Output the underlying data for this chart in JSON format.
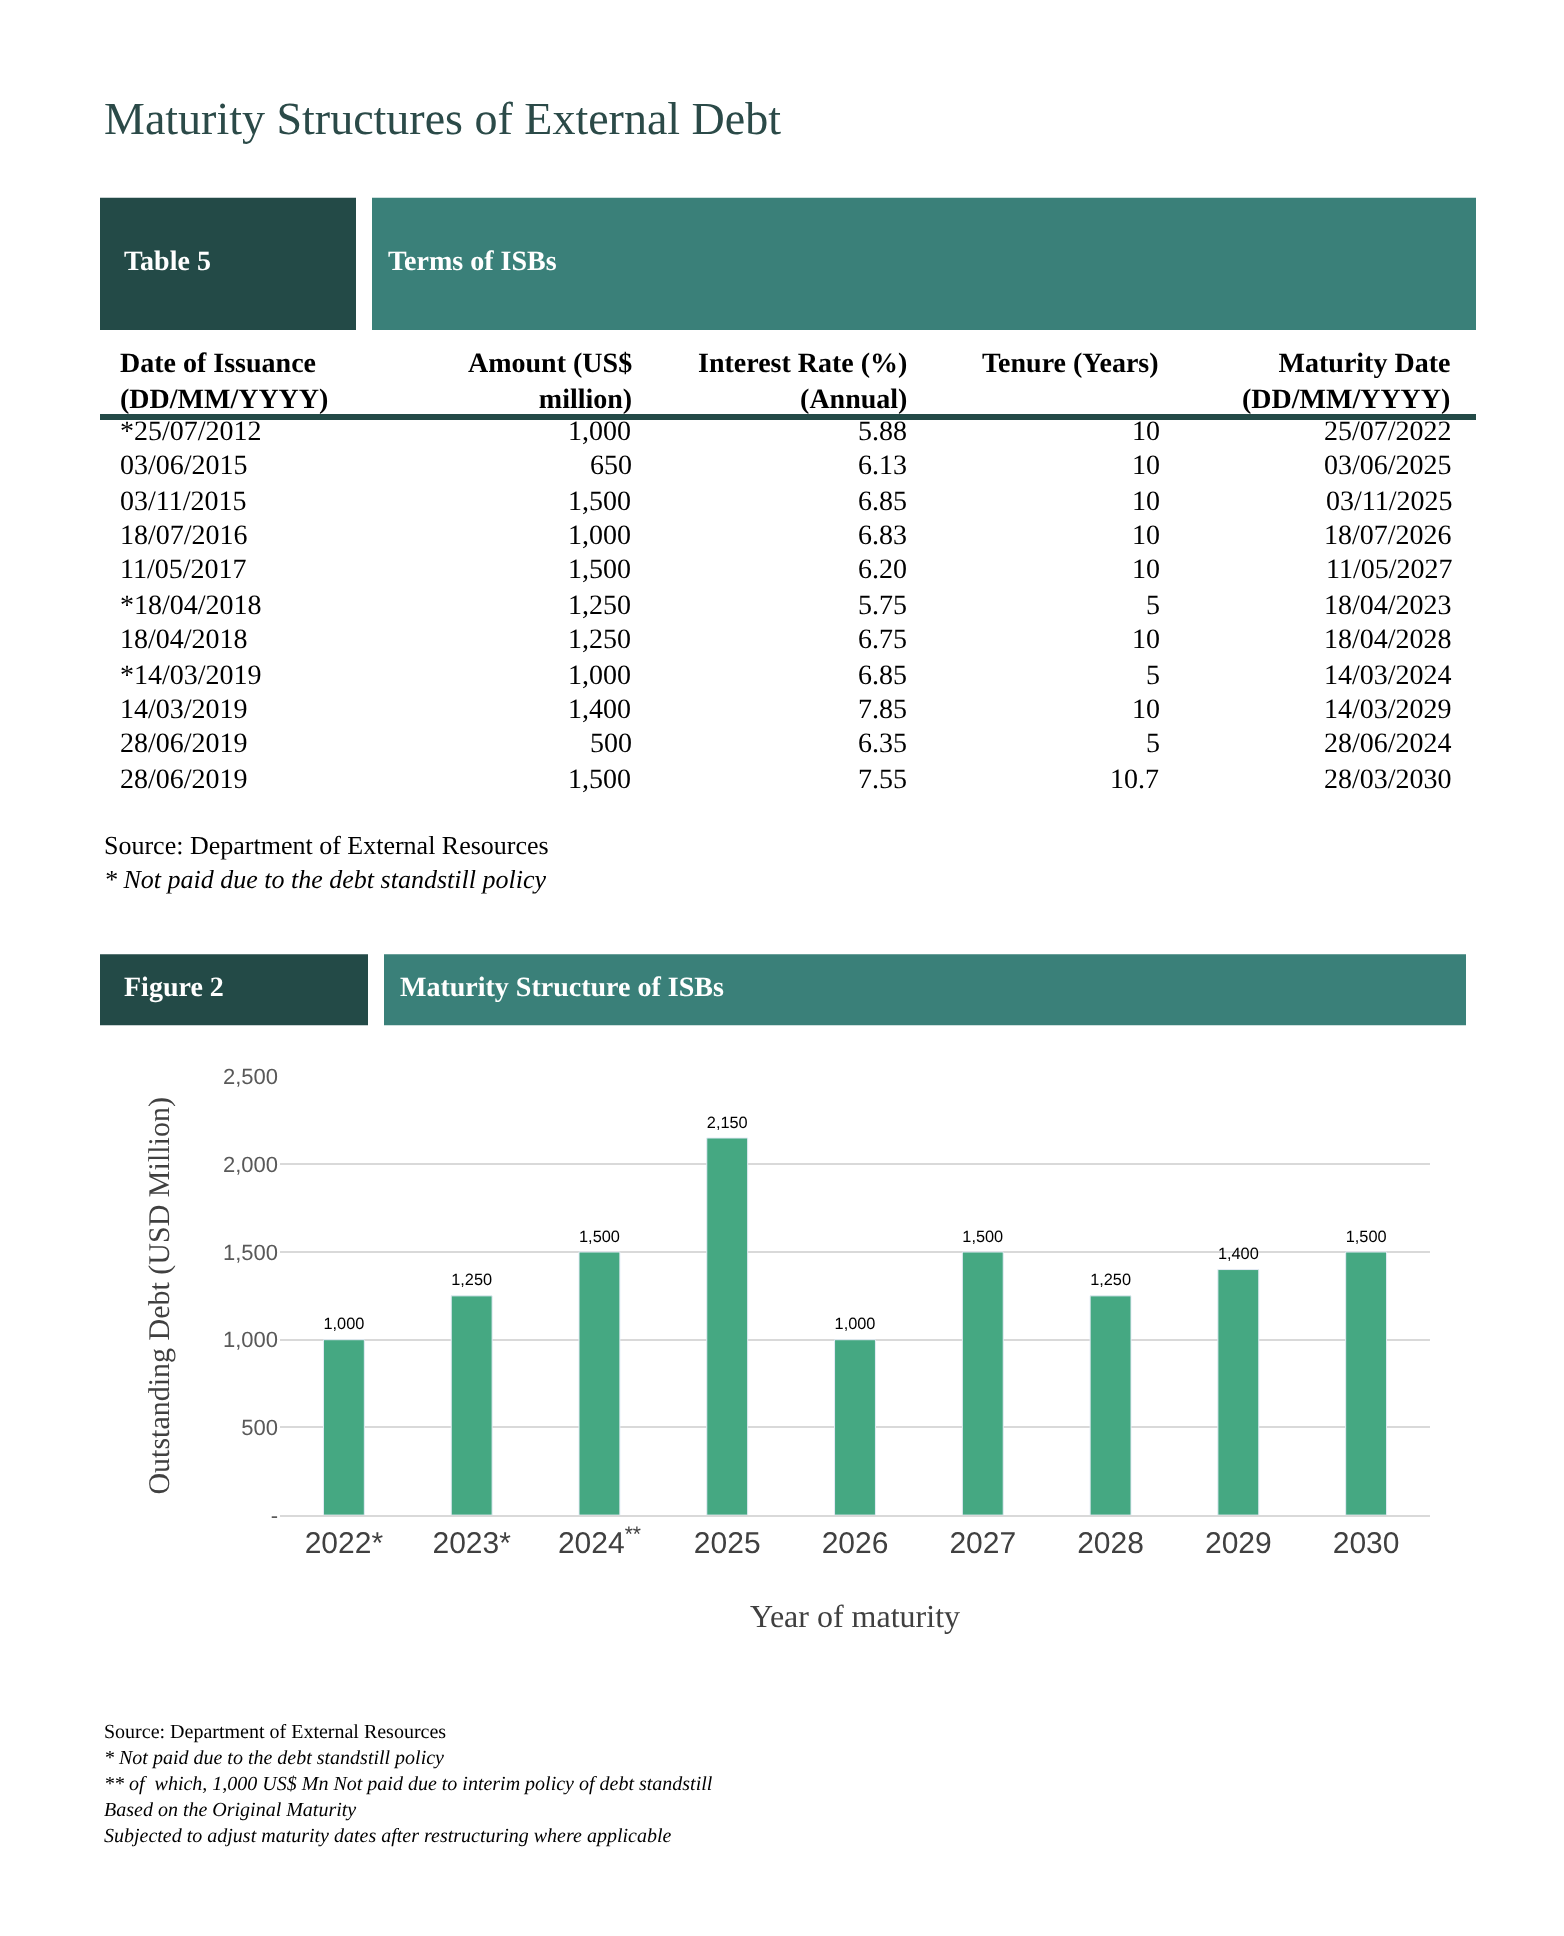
{
  "chart_data": [
    {
      "type": "other",
      "title": "Table 5",
      "subtitle": "Terms of ISBs",
      "categories": [
        "Date of Issuance\n(DD/MM/YYYY)",
        "Amount (US$\nmillion)",
        "Interest Rate (%)\n(Annual)",
        "Tenure (Years)",
        "Maturity Date\n(DD/MM/YYYY)"
      ],
      "cell_labels": [
        [
          "*25/07/2012",
          "1,000",
          "5.88",
          "10",
          "25/07/2022"
        ],
        [
          "03/06/2015",
          "650",
          "6.13",
          "10",
          "03/06/2025"
        ],
        [
          "03/11/2015",
          "1,500",
          "6.85",
          "10",
          "03/11/2025"
        ],
        [
          "18/07/2016",
          "1,000",
          "6.83",
          "10",
          "18/07/2026"
        ],
        [
          "11/05/2017",
          "1,500",
          "6.20",
          "10",
          "11/05/2027"
        ],
        [
          "*18/04/2018",
          "1,250",
          "5.75",
          "5",
          "18/04/2023"
        ],
        [
          "18/04/2018",
          "1,250",
          "6.75",
          "10",
          "18/04/2028"
        ],
        [
          "*14/03/2019",
          "1,000",
          "6.85",
          "5",
          "14/03/2024"
        ],
        [
          "14/03/2019",
          "1,400",
          "7.85",
          "10",
          "14/03/2029"
        ],
        [
          "28/06/2019",
          "500",
          "6.35",
          "5",
          "28/06/2024"
        ],
        [
          "28/06/2019",
          "1,500",
          "7.55",
          "10.7",
          "28/03/2030"
        ]
      ],
      "annotations": [
        "Maturity Structures of External Debt",
        "Source: Department of External Resources",
        "* Not paid due to the debt standstill policy"
      ]
    },
    {
      "type": "bar",
      "title": "Figure 2",
      "subtitle": "Maturity Structure of ISBs",
      "categories": [
        "2022*",
        "2023*",
        "2024$^{**}$",
        "2025",
        "2026",
        "2027",
        "2028",
        "2029",
        "2030"
      ],
      "values": [
        1000,
        1250,
        1500,
        2150,
        1000,
        1500,
        1250,
        1400,
        1500
      ],
      "value_labels": [
        "1,000",
        "1,250",
        "1,500",
        "2,150",
        "1,000",
        "1,500",
        "1,250",
        "1,400",
        "1,500"
      ],
      "color": "#45a882",
      "xlabel": "Year of maturity",
      "ylabel": "Outstanding Debt (USD Million)",
      "ylim": [
        0,
        2500
      ],
      "yticks": [
        {
          "value": 0,
          "label": "-"
        },
        500,
        {
          "value": 1000,
          "label": "1,000"
        },
        {
          "value": 1500,
          "label": "1,500"
        },
        {
          "value": 2000,
          "label": "2,000"
        },
        {
          "value": 2500,
          "label": "2,500"
        }
      ],
      "grid": "y",
      "legend": false,
      "annotations": [
        "Source: Department of External Resources",
        "* Not paid due to the debt standstill policy",
        "** of  which, 1,000 US$ Mn Not paid due to interim policy of debt standstill",
        "Based on the Original Maturity",
        "Subjected to adjust maturity dates after restructuring where applicable"
      ]
    }
  ]
}
